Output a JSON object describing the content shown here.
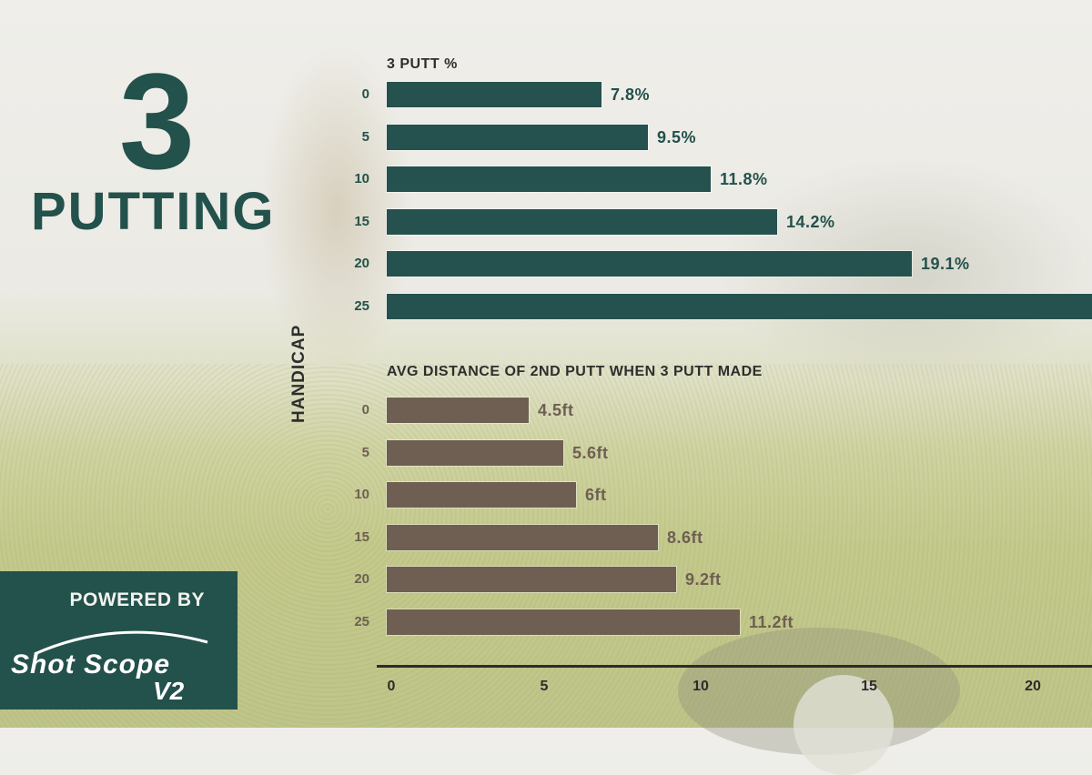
{
  "header": {
    "number": "3",
    "word": "PUTTING"
  },
  "y_axis_label": "HANDICAP",
  "colors": {
    "green": "#25514e",
    "brown": "#6e5f52",
    "text_dark": "#2e2e2e"
  },
  "badge": {
    "powered_by": "POWERED BY",
    "brand": "Shot Scope",
    "version": "V2"
  },
  "chart_data": [
    {
      "type": "bar",
      "orientation": "horizontal",
      "title": "3 PUTT %",
      "ylabel": "HANDICAP",
      "categories": [
        "0",
        "5",
        "10",
        "15",
        "20",
        "25"
      ],
      "values": [
        7.8,
        9.5,
        11.8,
        14.2,
        19.1,
        null
      ],
      "labels": [
        "7.8%",
        "9.5%",
        "11.8%",
        "14.2%",
        "19.1%",
        ""
      ],
      "unit": "%",
      "color": "#25514e"
    },
    {
      "type": "bar",
      "orientation": "horizontal",
      "title": "AVG DISTANCE OF 2ND PUTT WHEN 3 PUTT MADE",
      "ylabel": "HANDICAP",
      "categories": [
        "0",
        "5",
        "10",
        "15",
        "20",
        "25"
      ],
      "values": [
        4.5,
        5.6,
        6,
        8.6,
        9.2,
        11.2
      ],
      "labels": [
        "4.5ft",
        "5.6ft",
        "6ft",
        "8.6ft",
        "9.2ft",
        "11.2ft"
      ],
      "unit": "ft",
      "color": "#6e5f52",
      "x_ticks": [
        "0",
        "5",
        "10",
        "15",
        "20"
      ],
      "xlim": [
        0,
        22
      ]
    }
  ]
}
